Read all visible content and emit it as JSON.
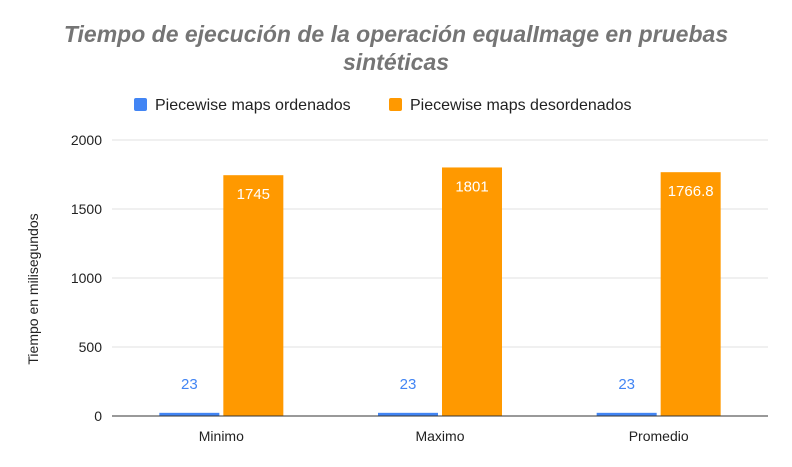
{
  "chart_data": {
    "type": "bar",
    "title": "Tiempo de ejecución de la operación equalImage en pruebas sintéticas",
    "title_lines": [
      "Tiempo de ejecución de la operación equalImage en pruebas",
      "sintéticas"
    ],
    "xlabel": "",
    "ylabel": "Tiempo en milisegundos",
    "categories": [
      "Minimo",
      "Maximo",
      "Promedio"
    ],
    "series": [
      {
        "name": "Piecewise maps ordenados",
        "values": [
          23,
          23,
          23
        ],
        "labels": [
          "23",
          "23",
          "23"
        ],
        "color": "#4285f4",
        "label_color": "#4285f4"
      },
      {
        "name": "Piecewise maps desordenados",
        "values": [
          1745,
          1801,
          1766.8
        ],
        "labels": [
          "1745",
          "1801",
          "1766.8"
        ],
        "color": "#ff9900",
        "label_color": "#ffffff"
      }
    ],
    "ylim": [
      0,
      2000
    ],
    "yticks": [
      0,
      500,
      1000,
      1500,
      2000
    ],
    "grid": true,
    "legend_position": "top-center"
  },
  "colors": {
    "title": "#757575",
    "grid": "#e0e0e0",
    "axis": "#333333",
    "text": "#222222"
  }
}
